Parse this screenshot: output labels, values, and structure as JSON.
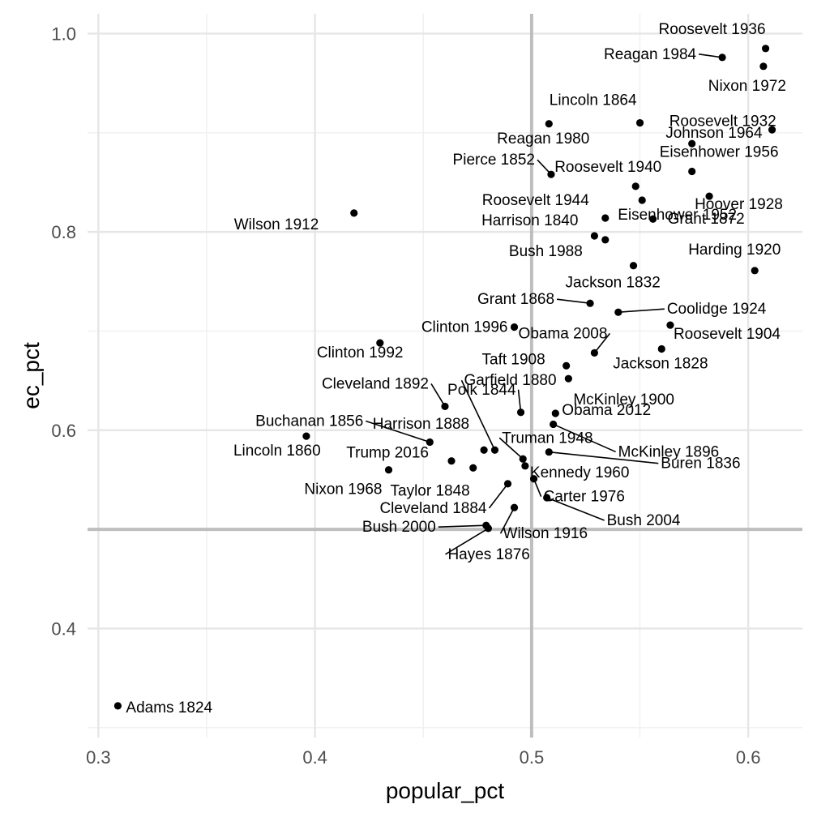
{
  "chart_data": {
    "type": "scatter",
    "xlabel": "popular_pct",
    "ylabel": "ec_pct",
    "xlim": [
      0.295,
      0.625
    ],
    "ylim": [
      0.29,
      1.02
    ],
    "x_ticks": [
      0.3,
      0.4,
      0.5,
      0.6
    ],
    "x_tick_labels": [
      "0.3",
      "0.4",
      "0.5",
      "0.6"
    ],
    "y_ticks": [
      0.4,
      0.6,
      0.8,
      1.0
    ],
    "y_tick_labels": [
      "0.4",
      "0.6",
      "0.8",
      "1.0"
    ],
    "x_minor_ticks": [
      0.35,
      0.45,
      0.55
    ],
    "y_minor_ticks": [
      0.3,
      0.5,
      0.7,
      0.9
    ],
    "reference_lines": {
      "x": 0.5,
      "y": 0.5
    },
    "grid": true,
    "points": [
      {
        "label": "Roosevelt 1936",
        "x": 0.608,
        "y": 0.985
      },
      {
        "label": "Reagan 1984",
        "x": 0.588,
        "y": 0.976
      },
      {
        "label": "Nixon 1972",
        "x": 0.607,
        "y": 0.967
      },
      {
        "label": "Lincoln 1864",
        "x": 0.55,
        "y": 0.91
      },
      {
        "label": "Reagan 1980",
        "x": 0.508,
        "y": 0.909
      },
      {
        "label": "Johnson 1964",
        "x": 0.611,
        "y": 0.903
      },
      {
        "label": "Roosevelt 1932",
        "x": 0.574,
        "y": 0.889
      },
      {
        "label": "Roosevelt 1940",
        "x": 0.548,
        "y": 0.846
      },
      {
        "label": "Pierce 1852",
        "x": 0.509,
        "y": 0.858
      },
      {
        "label": "Eisenhower 1956",
        "x": 0.574,
        "y": 0.861
      },
      {
        "label": "Hoover 1928",
        "x": 0.582,
        "y": 0.836
      },
      {
        "label": "Eisenhower 1952",
        "x": 0.551,
        "y": 0.832
      },
      {
        "label": "Wilson 1912",
        "x": 0.418,
        "y": 0.819
      },
      {
        "label": "Roosevelt 1944",
        "x": 0.534,
        "y": 0.814
      },
      {
        "label": "Grant 1872",
        "x": 0.556,
        "y": 0.813
      },
      {
        "label": "Harrison 1840",
        "x": 0.529,
        "y": 0.796
      },
      {
        "label": "Bush 1988",
        "x": 0.534,
        "y": 0.792
      },
      {
        "label": "Jackson 1832",
        "x": 0.547,
        "y": 0.766
      },
      {
        "label": "Harding 1920",
        "x": 0.603,
        "y": 0.761
      },
      {
        "label": "Grant 1868",
        "x": 0.527,
        "y": 0.728
      },
      {
        "label": "Coolidge 1924",
        "x": 0.54,
        "y": 0.719
      },
      {
        "label": "Obama 2008",
        "x": 0.529,
        "y": 0.678
      },
      {
        "label": "Clinton 1996",
        "x": 0.492,
        "y": 0.704
      },
      {
        "label": "Roosevelt 1904",
        "x": 0.564,
        "y": 0.706
      },
      {
        "label": "Clinton 1992",
        "x": 0.43,
        "y": 0.688
      },
      {
        "label": "Taft 1908",
        "x": 0.516,
        "y": 0.665
      },
      {
        "label": "Jackson 1828",
        "x": 0.56,
        "y": 0.682
      },
      {
        "label": "Polk 1844",
        "x": 0.495,
        "y": 0.618
      },
      {
        "label": "McKinley 1900",
        "x": 0.517,
        "y": 0.652
      },
      {
        "label": "Cleveland 1892",
        "x": 0.46,
        "y": 0.624
      },
      {
        "label": "Garfield 1880",
        "x": 0.483,
        "y": 0.58
      },
      {
        "label": "Obama 2012",
        "x": 0.511,
        "y": 0.617
      },
      {
        "label": "McKinley 1896",
        "x": 0.51,
        "y": 0.606
      },
      {
        "label": "Buchanan 1856",
        "x": 0.453,
        "y": 0.588
      },
      {
        "label": "Harrison 1888",
        "x": 0.478,
        "y": 0.58
      },
      {
        "label": "Lincoln 1860",
        "x": 0.396,
        "y": 0.594
      },
      {
        "label": "Truman 1948",
        "x": 0.496,
        "y": 0.571
      },
      {
        "label": "Buren 1836",
        "x": 0.508,
        "y": 0.578
      },
      {
        "label": "Trump 2016",
        "x": 0.463,
        "y": 0.569
      },
      {
        "label": "Kennedy 1960",
        "x": 0.497,
        "y": 0.564
      },
      {
        "label": "Taylor 1848",
        "x": 0.473,
        "y": 0.562
      },
      {
        "label": "Nixon 1968",
        "x": 0.434,
        "y": 0.56
      },
      {
        "label": "Carter 1976",
        "x": 0.501,
        "y": 0.551
      },
      {
        "label": "Cleveland 1884",
        "x": 0.489,
        "y": 0.546
      },
      {
        "label": "Bush 2004",
        "x": 0.507,
        "y": 0.532
      },
      {
        "label": "Wilson 1916",
        "x": 0.492,
        "y": 0.522
      },
      {
        "label": "Bush 2000",
        "x": 0.479,
        "y": 0.504
      },
      {
        "label": "Hayes 1876",
        "x": 0.48,
        "y": 0.501
      },
      {
        "label": "Adams 1824",
        "x": 0.309,
        "y": 0.322
      }
    ]
  }
}
